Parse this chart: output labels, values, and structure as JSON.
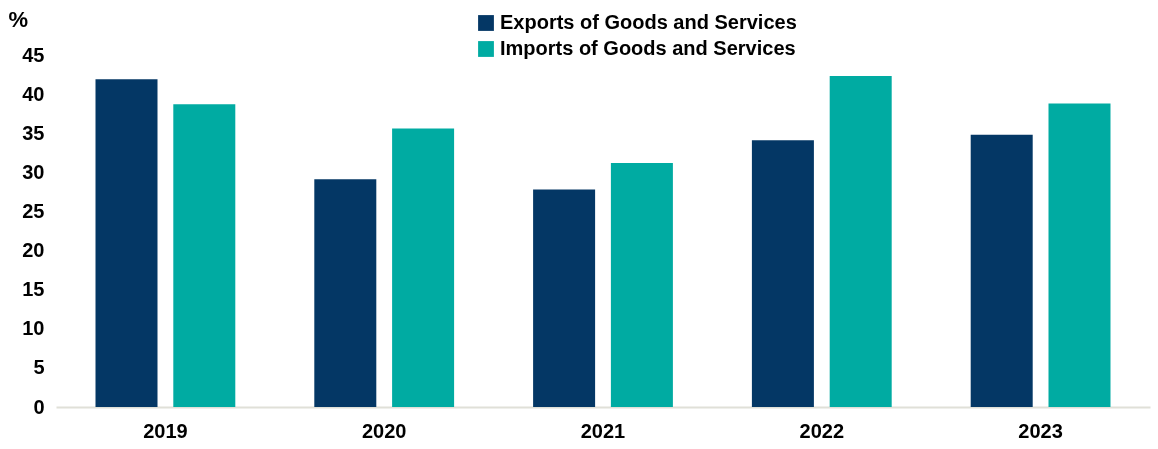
{
  "chart_data": {
    "type": "bar",
    "ylabel": "%",
    "categories": [
      "2019",
      "2020",
      "2021",
      "2022",
      "2023"
    ],
    "series": [
      {
        "name": "Exports of Goods and Services",
        "color": "#043765",
        "values": [
          41.9,
          29.1,
          27.8,
          34.1,
          34.8
        ]
      },
      {
        "name": "Imports of Goods and Services",
        "color": "#00aba2",
        "values": [
          38.7,
          35.6,
          31.2,
          42.3,
          38.8
        ]
      }
    ],
    "ylim": [
      0,
      45
    ],
    "yticks": [
      0,
      5,
      10,
      15,
      20,
      25,
      30,
      35,
      40,
      45
    ],
    "grid": false,
    "legend": "top"
  }
}
